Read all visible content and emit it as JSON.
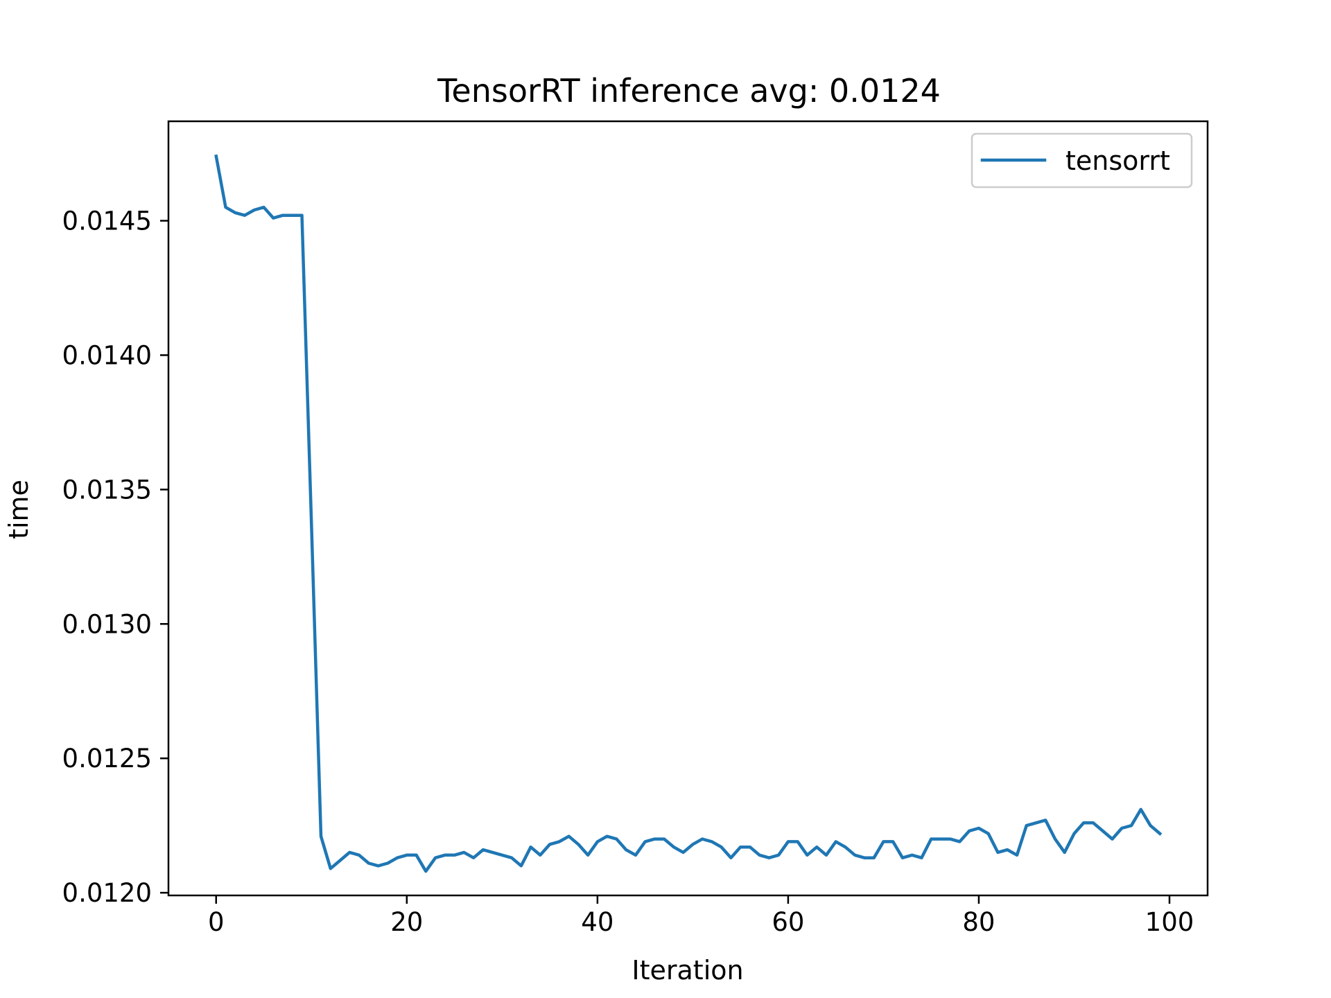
{
  "chart_data": {
    "type": "line",
    "title": "TensorRT inference avg: 0.0124",
    "xlabel": "Iteration",
    "ylabel": "time",
    "xlim": [
      -5,
      104
    ],
    "ylim": [
      0.01199,
      0.01487
    ],
    "xticks": [
      0,
      20,
      40,
      60,
      80,
      100
    ],
    "xtick_labels": [
      "0",
      "20",
      "40",
      "60",
      "80",
      "100"
    ],
    "yticks": [
      0.012,
      0.0125,
      0.013,
      0.0135,
      0.014,
      0.0145
    ],
    "ytick_labels": [
      "0.0120",
      "0.0125",
      "0.0130",
      "0.0135",
      "0.0140",
      "0.0145"
    ],
    "grid": false,
    "legend_position": "top-right",
    "series": [
      {
        "name": "tensorrt",
        "color": "#1f77b4",
        "x": [
          0,
          1,
          2,
          3,
          4,
          5,
          6,
          7,
          8,
          9,
          10,
          11,
          12,
          13,
          14,
          15,
          16,
          17,
          18,
          19,
          20,
          21,
          22,
          23,
          24,
          25,
          26,
          27,
          28,
          29,
          30,
          31,
          32,
          33,
          34,
          35,
          36,
          37,
          38,
          39,
          40,
          41,
          42,
          43,
          44,
          45,
          46,
          47,
          48,
          49,
          50,
          51,
          52,
          53,
          54,
          55,
          56,
          57,
          58,
          59,
          60,
          61,
          62,
          63,
          64,
          65,
          66,
          67,
          68,
          69,
          70,
          71,
          72,
          73,
          74,
          75,
          76,
          77,
          78,
          79,
          80,
          81,
          82,
          83,
          84,
          85,
          86,
          87,
          88,
          89,
          90,
          91,
          92,
          93,
          94,
          95,
          96,
          97,
          98,
          99
        ],
        "y": [
          0.01474,
          0.01455,
          0.01453,
          0.01452,
          0.01454,
          0.01455,
          0.01451,
          0.01452,
          0.01452,
          0.01452,
          0.01337,
          0.01221,
          0.01209,
          0.01212,
          0.01215,
          0.01214,
          0.01211,
          0.0121,
          0.01211,
          0.01213,
          0.01214,
          0.01214,
          0.01208,
          0.01213,
          0.01214,
          0.01214,
          0.01215,
          0.01213,
          0.01216,
          0.01215,
          0.01214,
          0.01213,
          0.0121,
          0.01217,
          0.01214,
          0.01218,
          0.01219,
          0.01221,
          0.01218,
          0.01214,
          0.01219,
          0.01221,
          0.0122,
          0.01216,
          0.01214,
          0.01219,
          0.0122,
          0.0122,
          0.01217,
          0.01215,
          0.01218,
          0.0122,
          0.01219,
          0.01217,
          0.01213,
          0.01217,
          0.01217,
          0.01214,
          0.01213,
          0.01214,
          0.01219,
          0.01219,
          0.01214,
          0.01217,
          0.01214,
          0.01219,
          0.01217,
          0.01214,
          0.01213,
          0.01213,
          0.01219,
          0.01219,
          0.01213,
          0.01214,
          0.01213,
          0.0122,
          0.0122,
          0.0122,
          0.01219,
          0.01223,
          0.01224,
          0.01222,
          0.01215,
          0.01216,
          0.01214,
          0.01225,
          0.01226,
          0.01227,
          0.0122,
          0.01215,
          0.01222,
          0.01226,
          0.01226,
          0.01223,
          0.0122,
          0.01224,
          0.01225,
          0.01231,
          0.01225,
          0.01222
        ]
      }
    ]
  }
}
